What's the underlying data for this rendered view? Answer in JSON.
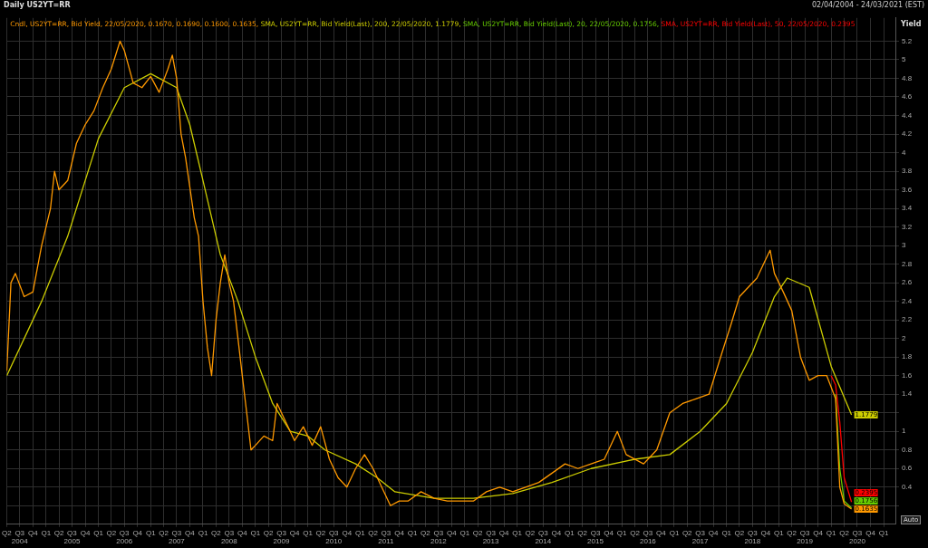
{
  "chart_data": {
    "type": "line",
    "title": "Daily US2YT=RR",
    "ylabel": "Yield",
    "annotations": [
      "02/04/2004 - 24/03/2021 (EST)",
      "Auto"
    ],
    "xlim": [
      "2004-04-01",
      "2021-03-24"
    ],
    "xticks": [
      {
        "value": "2004-04-01",
        "label": "Q2"
      },
      {
        "value": "2004-07-01",
        "label": "Q3\n2004"
      },
      {
        "value": "2004-10-01",
        "label": "Q4"
      },
      {
        "value": "2005-01-01",
        "label": "Q1"
      },
      {
        "value": "2005-04-01",
        "label": "Q2"
      },
      {
        "value": "2005-07-01",
        "label": "Q3\n2005"
      },
      {
        "value": "2005-10-01",
        "label": "Q4"
      },
      {
        "value": "2006-01-01",
        "label": "Q1"
      },
      {
        "value": "2006-04-01",
        "label": "Q2"
      },
      {
        "value": "2006-07-01",
        "label": "Q3\n2006"
      },
      {
        "value": "2006-10-01",
        "label": "Q4"
      },
      {
        "value": "2007-01-01",
        "label": "Q1"
      },
      {
        "value": "2007-04-01",
        "label": "Q2"
      },
      {
        "value": "2007-07-01",
        "label": "Q3\n2007"
      },
      {
        "value": "2007-10-01",
        "label": "Q4"
      },
      {
        "value": "2008-01-01",
        "label": "Q1"
      },
      {
        "value": "2008-04-01",
        "label": "Q2"
      },
      {
        "value": "2008-07-01",
        "label": "Q3\n2008"
      },
      {
        "value": "2008-10-01",
        "label": "Q4"
      },
      {
        "value": "2009-01-01",
        "label": "Q1"
      },
      {
        "value": "2009-04-01",
        "label": "Q2"
      },
      {
        "value": "2009-07-01",
        "label": "Q3\n2009"
      },
      {
        "value": "2009-10-01",
        "label": "Q4"
      },
      {
        "value": "2010-01-01",
        "label": "Q1"
      },
      {
        "value": "2010-04-01",
        "label": "Q2"
      },
      {
        "value": "2010-07-01",
        "label": "Q3\n2010"
      },
      {
        "value": "2010-10-01",
        "label": "Q4"
      },
      {
        "value": "2011-01-01",
        "label": "Q1"
      },
      {
        "value": "2011-04-01",
        "label": "Q2"
      },
      {
        "value": "2011-07-01",
        "label": "Q3\n2011"
      },
      {
        "value": "2011-10-01",
        "label": "Q4"
      },
      {
        "value": "2012-01-01",
        "label": "Q1"
      },
      {
        "value": "2012-04-01",
        "label": "Q2"
      },
      {
        "value": "2012-07-01",
        "label": "Q3\n2012"
      },
      {
        "value": "2012-10-01",
        "label": "Q4"
      },
      {
        "value": "2013-01-01",
        "label": "Q1"
      },
      {
        "value": "2013-04-01",
        "label": "Q2"
      },
      {
        "value": "2013-07-01",
        "label": "Q3\n2013"
      },
      {
        "value": "2013-10-01",
        "label": "Q4"
      },
      {
        "value": "2014-01-01",
        "label": "Q1"
      },
      {
        "value": "2014-04-01",
        "label": "Q2"
      },
      {
        "value": "2014-07-01",
        "label": "Q3\n2014"
      },
      {
        "value": "2014-10-01",
        "label": "Q4"
      },
      {
        "value": "2015-01-01",
        "label": "Q1"
      },
      {
        "value": "2015-04-01",
        "label": "Q2"
      },
      {
        "value": "2015-07-01",
        "label": "Q3\n2015"
      },
      {
        "value": "2015-10-01",
        "label": "Q4"
      },
      {
        "value": "2016-01-01",
        "label": "Q1"
      },
      {
        "value": "2016-04-01",
        "label": "Q2"
      },
      {
        "value": "2016-07-01",
        "label": "Q3\n2016"
      },
      {
        "value": "2016-10-01",
        "label": "Q4"
      },
      {
        "value": "2017-01-01",
        "label": "Q1"
      },
      {
        "value": "2017-04-01",
        "label": "Q2"
      },
      {
        "value": "2017-07-01",
        "label": "Q3\n2017"
      },
      {
        "value": "2017-10-01",
        "label": "Q4"
      },
      {
        "value": "2018-01-01",
        "label": "Q1"
      },
      {
        "value": "2018-04-01",
        "label": "Q2"
      },
      {
        "value": "2018-07-01",
        "label": "Q3\n2018"
      },
      {
        "value": "2018-10-01",
        "label": "Q4"
      },
      {
        "value": "2019-01-01",
        "label": "Q1"
      },
      {
        "value": "2019-04-01",
        "label": "Q2"
      },
      {
        "value": "2019-07-01",
        "label": "Q3\n2019"
      },
      {
        "value": "2019-10-01",
        "label": "Q4"
      },
      {
        "value": "2020-01-01",
        "label": "Q1"
      },
      {
        "value": "2020-04-01",
        "label": "Q2"
      },
      {
        "value": "2020-07-01",
        "label": "Q3\n2020"
      },
      {
        "value": "2020-10-01",
        "label": "Q4"
      },
      {
        "value": "2021-01-01",
        "label": "Q1"
      }
    ],
    "ylim": [
      0,
      5.45
    ],
    "yticks": [
      {
        "value": 0.2,
        "label": null
      },
      0.4,
      0.6,
      0.8,
      1,
      {
        "value": 1.2,
        "label": null
      },
      1.4,
      1.6,
      1.8,
      2,
      2.2,
      2.4,
      2.6,
      2.8,
      3,
      3.2,
      3.4,
      3.6,
      3.8,
      4,
      4.2,
      4.4,
      4.6,
      4.8,
      5,
      5.2
    ],
    "grid": true,
    "legend": "top left",
    "marker": "none",
    "line_style": "solid",
    "series": [
      {
        "name": "Cndl, US2YT=RR, Bid Yield, 22/05/2020, 0.1670, 0.1690, 0.1600, 0.1635,",
        "color": "#ff9900",
        "x": [
          "2004-04-02",
          "2004-05",
          "2004-06",
          "2004-08",
          "2004-10",
          "2004-12",
          "2005-02",
          "2005-03",
          "2005-04",
          "2005-06",
          "2005-08",
          "2005-10",
          "2005-12",
          "2006-02",
          "2006-04",
          "2006-06",
          "2006-07",
          "2006-09",
          "2006-11",
          "2007-01",
          "2007-03",
          "2007-05",
          "2007-06",
          "2007-07",
          "2007-08",
          "2007-09",
          "2007-11",
          "2007-12",
          "2008-01",
          "2008-02",
          "2008-03",
          "2008-04",
          "2008-05",
          "2008-06",
          "2008-07",
          "2008-08",
          "2008-09",
          "2008-10",
          "2008-11",
          "2008-12",
          "2009-01",
          "2009-03",
          "2009-05",
          "2009-06",
          "2009-08",
          "2009-10",
          "2009-12",
          "2010-02",
          "2010-04",
          "2010-06",
          "2010-08",
          "2010-10",
          "2010-12",
          "2011-02",
          "2011-04",
          "2011-06",
          "2011-08",
          "2011-10",
          "2011-12",
          "2012-03",
          "2012-06",
          "2012-09",
          "2012-12",
          "2013-03",
          "2013-06",
          "2013-09",
          "2013-12",
          "2014-03",
          "2014-06",
          "2014-09",
          "2014-12",
          "2015-03",
          "2015-06",
          "2015-09",
          "2015-12",
          "2016-02",
          "2016-06",
          "2016-09",
          "2016-12",
          "2017-03",
          "2017-06",
          "2017-09",
          "2017-12",
          "2018-02",
          "2018-04",
          "2018-06",
          "2018-08",
          "2018-10",
          "2018-11",
          "2018-12",
          "2019-02",
          "2019-04",
          "2019-06",
          "2019-08",
          "2019-10",
          "2019-12",
          "2020-02",
          "2020-03",
          "2020-04",
          "2020-05-22"
        ],
        "values": [
          1.65,
          2.6,
          2.7,
          2.45,
          2.5,
          3.0,
          3.4,
          3.8,
          3.6,
          3.7,
          4.1,
          4.3,
          4.45,
          4.7,
          4.9,
          5.2,
          5.1,
          4.75,
          4.7,
          4.82,
          4.65,
          4.9,
          5.05,
          4.8,
          4.2,
          3.95,
          3.3,
          3.1,
          2.4,
          1.9,
          1.6,
          2.2,
          2.6,
          2.9,
          2.6,
          2.4,
          2.0,
          1.6,
          1.2,
          0.8,
          0.85,
          0.95,
          0.9,
          1.3,
          1.1,
          0.9,
          1.05,
          0.85,
          1.05,
          0.7,
          0.5,
          0.4,
          0.6,
          0.75,
          0.6,
          0.4,
          0.2,
          0.25,
          0.25,
          0.35,
          0.28,
          0.25,
          0.25,
          0.25,
          0.35,
          0.4,
          0.35,
          0.4,
          0.45,
          0.55,
          0.65,
          0.6,
          0.65,
          0.7,
          1.0,
          0.75,
          0.65,
          0.8,
          1.2,
          1.3,
          1.35,
          1.4,
          1.85,
          2.15,
          2.45,
          2.55,
          2.65,
          2.85,
          2.95,
          2.7,
          2.5,
          2.3,
          1.8,
          1.55,
          1.6,
          1.6,
          1.35,
          0.4,
          0.22,
          0.1635
        ],
        "value_labels": [
          null,
          null,
          null,
          null,
          null,
          null,
          null,
          null,
          null,
          null,
          null,
          null,
          null,
          null,
          null,
          null,
          null,
          null,
          null,
          null,
          null,
          null,
          null,
          null,
          null,
          null,
          null,
          null,
          null,
          null,
          null,
          null,
          null,
          null,
          null,
          null,
          null,
          null,
          null,
          null,
          null,
          null,
          null,
          null,
          null,
          null,
          null,
          null,
          null,
          null,
          null,
          null,
          null,
          null,
          null,
          null,
          null,
          null,
          null,
          null,
          null,
          null,
          null,
          null,
          null,
          null,
          null,
          null,
          null,
          null,
          null,
          null,
          null,
          null,
          null,
          null,
          null,
          null,
          null,
          null,
          null,
          null,
          null,
          null,
          null,
          null,
          null,
          null,
          null,
          null,
          null,
          null,
          null,
          null,
          null,
          null,
          null,
          null,
          null,
          "0.1635"
        ]
      },
      {
        "name": "SMA, US2YT=RR, Bid Yield(Last), 200, 22/05/2020, 1.1779,",
        "color": "#cccc00",
        "x": [
          "2004-04-02",
          "2004-12",
          "2005-06",
          "2006-01",
          "2006-07",
          "2007-01",
          "2007-07",
          "2007-10",
          "2008-01",
          "2008-05",
          "2008-09",
          "2009-01",
          "2009-05",
          "2009-09",
          "2010-01",
          "2010-05",
          "2010-12",
          "2011-05",
          "2011-09",
          "2012-06",
          "2013-03",
          "2013-12",
          "2014-09",
          "2015-06",
          "2016-04",
          "2016-12",
          "2017-07",
          "2018-01",
          "2018-07",
          "2018-12",
          "2019-03",
          "2019-08",
          "2020-01",
          "2020-05-22"
        ],
        "values": [
          1.6,
          2.4,
          3.1,
          4.15,
          4.7,
          4.85,
          4.7,
          4.3,
          3.7,
          2.9,
          2.4,
          1.8,
          1.3,
          1.0,
          0.95,
          0.8,
          0.65,
          0.5,
          0.35,
          0.28,
          0.28,
          0.33,
          0.45,
          0.6,
          0.7,
          0.75,
          1.0,
          1.3,
          1.85,
          2.45,
          2.65,
          2.55,
          1.7,
          1.1779
        ],
        "value_labels": [
          null,
          null,
          null,
          null,
          null,
          null,
          null,
          null,
          null,
          null,
          null,
          null,
          null,
          null,
          null,
          null,
          null,
          null,
          null,
          null,
          null,
          null,
          null,
          null,
          null,
          null,
          null,
          null,
          null,
          null,
          null,
          null,
          null,
          "1.1779"
        ]
      },
      {
        "name": "SMA, US2YT=RR, Bid Yield(Last), 20, 22/05/2020, 0.1756,",
        "color": "#66cc00",
        "x": [
          "2020-02",
          "2020-03",
          "2020-04",
          "2020-05-22"
        ],
        "values": [
          1.4,
          0.6,
          0.25,
          0.1756
        ],
        "value_labels": [
          null,
          null,
          null,
          "0.1756"
        ]
      },
      {
        "name": "SMA, US2YT=RR, Bid Yield(Last), 50, 22/05/2020, 0.2395",
        "color": "#ff0000",
        "x": [
          "2020-01",
          "2020-02",
          "2020-03",
          "2020-04",
          "2020-05-22"
        ],
        "values": [
          1.6,
          1.5,
          1.1,
          0.5,
          0.2395
        ],
        "value_labels": [
          null,
          null,
          null,
          null,
          "0.2395"
        ]
      }
    ]
  }
}
